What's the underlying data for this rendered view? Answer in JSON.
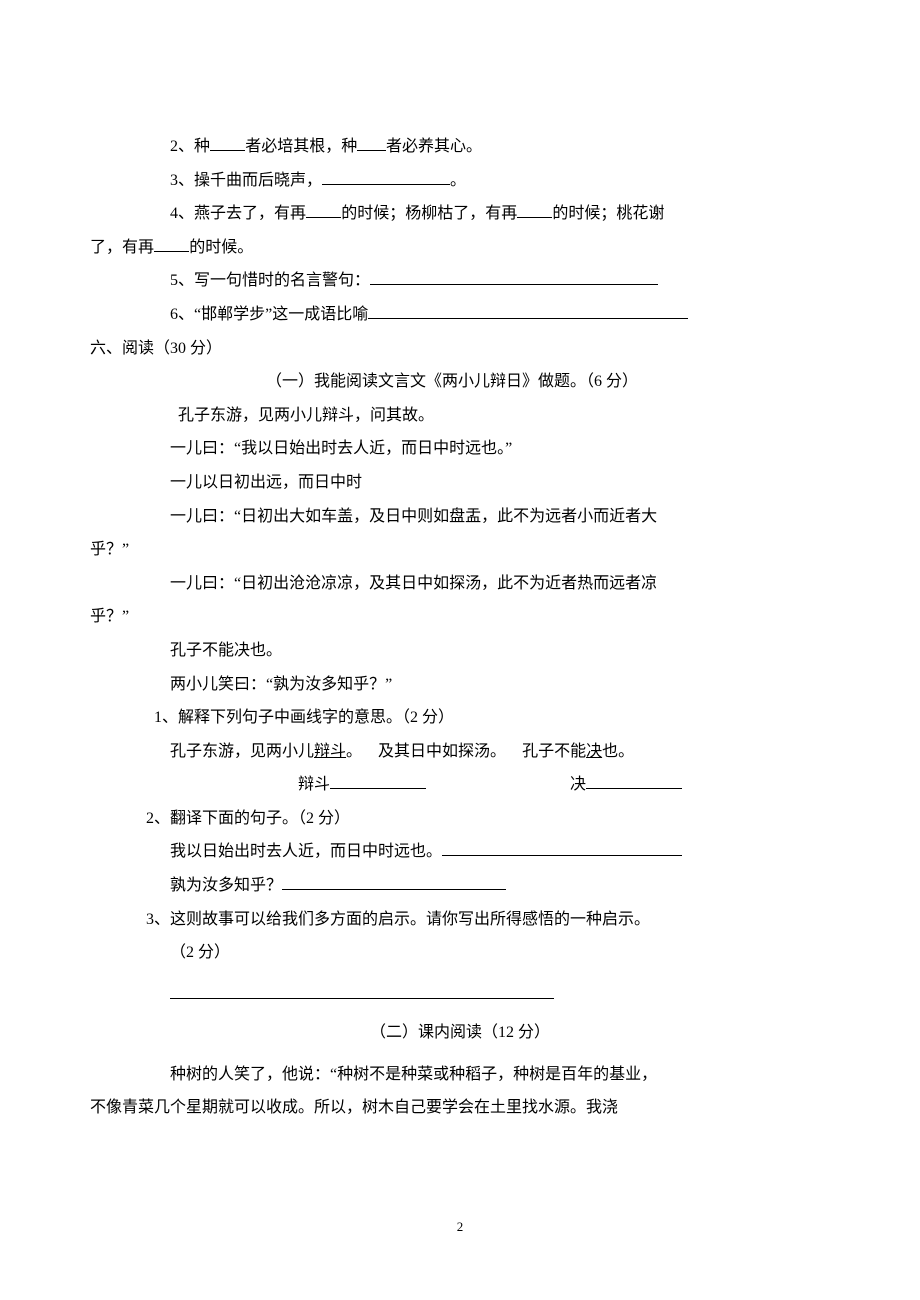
{
  "q2": {
    "pre": "2、种",
    "mid1": "者必培其根，种",
    "mid2": "者必养其心。"
  },
  "q3": {
    "pre": "3、操千曲而后晓声，",
    "post": "。"
  },
  "q4": {
    "pre": "4、燕子去了，有再",
    "mid1": "的时候；杨柳枯了，有再",
    "mid2": "的时候；桃花谢",
    "cont": "了，有再",
    "post": "的时候。"
  },
  "q5": {
    "pre": "5、写一句惜时的名言警句："
  },
  "q6": {
    "pre": "6、“邯郸学步”这一成语比喻"
  },
  "sec6": "六、阅读（30 分）",
  "p1_title": "（一）我能阅读文言文《两小儿辩日》做题。（6 分）",
  "p1_l1": "孔子东游，见两小儿辩斗，问其故。",
  "p1_l2": "一儿曰：“我以日始出时去人近，而日中时远也。”",
  "p1_l3": "一儿以日初出远，而日中时",
  "p1_l4": "一儿曰：“日初出大如车盖，及日中则如盘盂，此不为远者小而近者大",
  "p1_l4b": "乎？”",
  "p1_l5": "一儿曰：“日初出沧沧凉凉，及其日中如探汤，此不为近者热而远者凉",
  "p1_l5b": "乎？”",
  "p1_l6": "孔子不能决也。",
  "p1_l7": "两小儿笑曰：“孰为汝多知乎？”",
  "p1_q1": "1、解释下列句子中画线字的意思。（2 分）",
  "p1_q1_a_pre": "孔子东游，见两小儿",
  "p1_q1_a_u": "辩斗",
  "p1_q1_a_post": "。",
  "p1_q1_b": "及其日中如探汤。",
  "p1_q1_c_pre": "孔子不能",
  "p1_q1_c_u": "决",
  "p1_q1_c_post": "也。",
  "p1_q1_ans1": "辩斗",
  "p1_q1_ans2": "决",
  "p1_q2": "2、翻译下面的句子。（2 分）",
  "p1_q2_a": "我以日始出时去人近，而日中时远也。",
  "p1_q2_b": "孰为汝多知乎？",
  "p1_q3": "3、这则故事可以给我们多方面的启示。请你写出所得感悟的一种启示。",
  "p1_q3b": "（2 分）",
  "p2_title": "（二）课内阅读（12 分）",
  "p2_body1": "种树的人笑了，他说：“种树不是种菜或种稻子，种树是百年的基业，",
  "p2_body2": "不像青菜几个星期就可以收成。所以，树木自己要学会在土里找水源。我浇",
  "page": "2"
}
